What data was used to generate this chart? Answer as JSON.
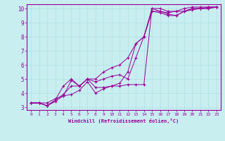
{
  "xlabel": "Windchill (Refroidissement éolien,°C)",
  "xlim": [
    -0.5,
    23.5
  ],
  "ylim": [
    2.8,
    10.3
  ],
  "xticks": [
    0,
    1,
    2,
    3,
    4,
    5,
    6,
    7,
    8,
    9,
    10,
    11,
    12,
    13,
    14,
    15,
    16,
    17,
    18,
    19,
    20,
    21,
    22,
    23
  ],
  "yticks": [
    3,
    4,
    5,
    6,
    7,
    8,
    9,
    10
  ],
  "line_color": "#990099",
  "bg_color": "#c8eef0",
  "grid_color": "#aadddd",
  "lines": [
    {
      "x": [
        0,
        1,
        2,
        3,
        4,
        5,
        6,
        7,
        8,
        9,
        10,
        11,
        12,
        13,
        14,
        15,
        16,
        17,
        18,
        19,
        20,
        21,
        22,
        23
      ],
      "y": [
        3.3,
        3.3,
        3.3,
        3.6,
        3.8,
        4.9,
        4.5,
        5.0,
        4.4,
        4.4,
        4.5,
        4.5,
        4.6,
        4.6,
        4.6,
        10.0,
        10.0,
        9.8,
        9.8,
        9.8,
        10.0,
        10.0,
        10.0,
        10.1
      ]
    },
    {
      "x": [
        0,
        1,
        2,
        3,
        4,
        5,
        6,
        7,
        8,
        9,
        10,
        11,
        12,
        13,
        14,
        15,
        16,
        17,
        18,
        19,
        20,
        21,
        22,
        23
      ],
      "y": [
        3.3,
        3.3,
        3.1,
        3.5,
        3.9,
        4.5,
        4.5,
        5.0,
        4.8,
        5.0,
        5.2,
        5.3,
        5.0,
        6.5,
        8.0,
        10.0,
        9.8,
        9.6,
        9.5,
        9.8,
        10.0,
        10.0,
        10.1,
        10.1
      ]
    },
    {
      "x": [
        0,
        1,
        2,
        3,
        4,
        5,
        6,
        7,
        8,
        9,
        10,
        11,
        12,
        13,
        14,
        15,
        16,
        17,
        18,
        19,
        20,
        21,
        22,
        23
      ],
      "y": [
        3.3,
        3.3,
        3.1,
        3.5,
        4.5,
        5.0,
        4.5,
        5.0,
        5.0,
        5.5,
        5.8,
        6.0,
        6.5,
        7.5,
        8.0,
        9.8,
        9.7,
        9.5,
        9.5,
        9.8,
        9.9,
        10.0,
        10.0,
        10.1
      ]
    },
    {
      "x": [
        0,
        1,
        2,
        3,
        4,
        5,
        6,
        7,
        8,
        9,
        10,
        11,
        12,
        13,
        14,
        15,
        16,
        17,
        18,
        19,
        20,
        21,
        22,
        23
      ],
      "y": [
        3.3,
        3.3,
        3.1,
        3.4,
        3.8,
        3.9,
        4.2,
        4.8,
        4.0,
        4.3,
        4.5,
        4.7,
        5.5,
        7.5,
        8.0,
        9.8,
        9.8,
        9.7,
        9.8,
        10.0,
        10.1,
        10.1,
        10.1,
        10.1
      ]
    }
  ]
}
